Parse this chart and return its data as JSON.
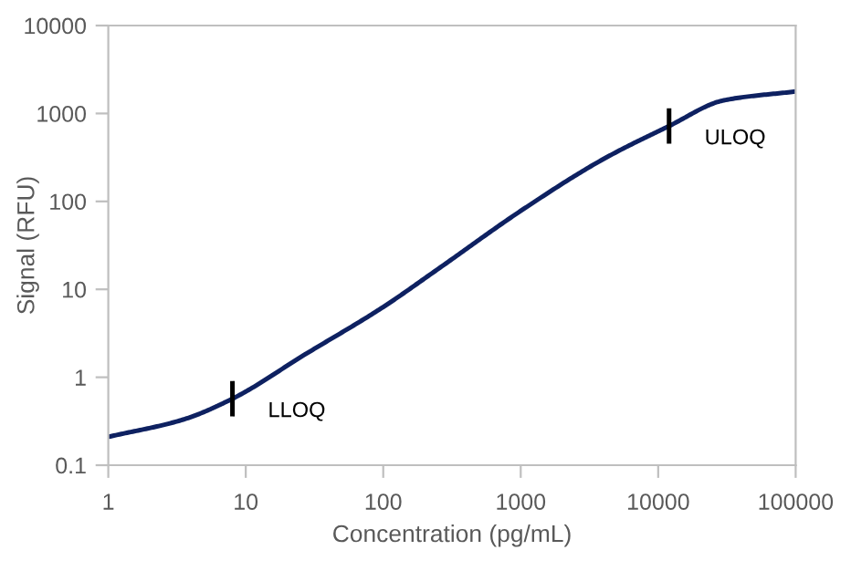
{
  "chart_data": {
    "type": "line",
    "xlabel": "Concentration (pg/mL)",
    "ylabel": "Signal (RFU)",
    "log": "xy",
    "series": [
      {
        "color": "#0e2161",
        "x": [
          1,
          3.5,
          8,
          26.7,
          100,
          250,
          1000,
          3980,
          12000,
          30000,
          100000
        ],
        "values": [
          0.21,
          0.33,
          0.57,
          1.8,
          6.3,
          17,
          78,
          302,
          720,
          1410,
          1780
        ]
      }
    ],
    "xlim": [
      1,
      100000
    ],
    "xticks": [
      1,
      10,
      100,
      1000,
      10000,
      100000
    ],
    "ylim": [
      0.1,
      10000
    ],
    "yticks": [
      0.1,
      1,
      10,
      100,
      1000,
      10000
    ],
    "annotations": [
      {
        "text": "LLOQ",
        "x": 8,
        "y": 0.57
      },
      {
        "text": "ULOQ",
        "x": 12000,
        "y": 720
      }
    ],
    "grid": false,
    "marker": "none",
    "line_style": "solid"
  }
}
